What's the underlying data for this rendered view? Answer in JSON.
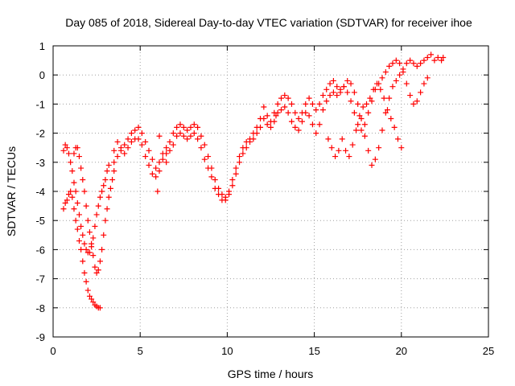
{
  "chart_data": {
    "type": "scatter",
    "title": "Day 085 of 2018, Sidereal Day-to-day VTEC variation (SDTVAR) for receiver ihoe",
    "xlabel": "GPS time / hours",
    "ylabel": "SDTVAR / TECUs",
    "xlim": [
      0,
      25
    ],
    "ylim": [
      -9,
      1
    ],
    "xticks": [
      "0",
      "5",
      "10",
      "15",
      "20",
      "25"
    ],
    "yticks": [
      "1",
      "0",
      "-1",
      "-2",
      "-3",
      "-4",
      "-5",
      "-6",
      "-7",
      "-8",
      "-9"
    ],
    "grid": true,
    "marker": "plus",
    "color": "#ff0000",
    "series": [
      {
        "values": [
          [
            0.6,
            -4.6
          ],
          [
            0.7,
            -4.4
          ],
          [
            0.8,
            -4.3
          ],
          [
            0.9,
            -4.1
          ],
          [
            1.0,
            -4.0
          ],
          [
            1.1,
            -4.2
          ],
          [
            1.2,
            -4.6
          ],
          [
            1.3,
            -5.0
          ],
          [
            1.4,
            -5.3
          ],
          [
            1.5,
            -5.7
          ],
          [
            1.6,
            -6.0
          ],
          [
            1.7,
            -6.4
          ],
          [
            1.8,
            -6.8
          ],
          [
            1.9,
            -7.1
          ],
          [
            2.0,
            -7.4
          ],
          [
            2.1,
            -7.6
          ],
          [
            2.2,
            -7.7
          ],
          [
            2.3,
            -7.8
          ],
          [
            2.4,
            -7.9
          ],
          [
            2.5,
            -7.95
          ],
          [
            2.6,
            -8.0
          ],
          [
            2.7,
            -8.0
          ]
        ]
      },
      {
        "values": [
          [
            0.6,
            -2.6
          ],
          [
            0.7,
            -2.4
          ],
          [
            0.8,
            -2.5
          ],
          [
            0.9,
            -2.7
          ],
          [
            1.0,
            -3.0
          ],
          [
            1.1,
            -3.3
          ],
          [
            1.2,
            -3.7
          ],
          [
            1.3,
            -4.0
          ],
          [
            1.4,
            -4.4
          ],
          [
            1.5,
            -4.8
          ],
          [
            1.6,
            -5.2
          ],
          [
            1.7,
            -5.5
          ],
          [
            1.8,
            -5.8
          ],
          [
            1.9,
            -6.0
          ],
          [
            2.0,
            -6.1
          ],
          [
            2.1,
            -6.1
          ],
          [
            2.2,
            -5.9
          ],
          [
            2.3,
            -5.6
          ],
          [
            2.4,
            -5.2
          ],
          [
            2.5,
            -4.8
          ],
          [
            2.6,
            -4.5
          ],
          [
            2.7,
            -4.2
          ],
          [
            2.8,
            -4.0
          ],
          [
            2.9,
            -3.8
          ],
          [
            3.0,
            -3.6
          ],
          [
            3.1,
            -3.3
          ],
          [
            3.2,
            -3.1
          ]
        ]
      },
      {
        "values": [
          [
            1.2,
            -2.7
          ],
          [
            1.3,
            -2.5
          ],
          [
            1.4,
            -2.5
          ],
          [
            1.5,
            -2.8
          ],
          [
            1.6,
            -3.2
          ],
          [
            1.7,
            -3.6
          ],
          [
            1.8,
            -4.0
          ],
          [
            1.9,
            -4.5
          ],
          [
            2.0,
            -5.0
          ],
          [
            2.1,
            -5.4
          ],
          [
            2.2,
            -5.8
          ],
          [
            2.3,
            -6.2
          ],
          [
            2.4,
            -6.6
          ],
          [
            2.5,
            -6.8
          ],
          [
            2.6,
            -6.7
          ],
          [
            2.7,
            -6.4
          ],
          [
            2.8,
            -6.0
          ],
          [
            2.9,
            -5.5
          ],
          [
            3.0,
            -5.0
          ],
          [
            3.1,
            -4.6
          ],
          [
            3.2,
            -4.2
          ],
          [
            3.3,
            -3.9
          ],
          [
            3.4,
            -3.6
          ],
          [
            3.5,
            -3.3
          ]
        ]
      },
      {
        "values": [
          [
            3.5,
            -2.6
          ],
          [
            3.7,
            -2.3
          ],
          [
            3.9,
            -2.6
          ],
          [
            4.1,
            -2.4
          ],
          [
            4.3,
            -2.2
          ],
          [
            4.5,
            -2.0
          ],
          [
            4.7,
            -1.9
          ],
          [
            4.9,
            -1.8
          ],
          [
            5.1,
            -2.0
          ],
          [
            5.3,
            -2.3
          ],
          [
            5.5,
            -2.6
          ],
          [
            5.7,
            -2.9
          ],
          [
            5.9,
            -3.2
          ],
          [
            6.1,
            -3.0
          ],
          [
            6.3,
            -2.7
          ],
          [
            6.5,
            -2.5
          ],
          [
            6.7,
            -2.3
          ],
          [
            6.9,
            -2.0
          ],
          [
            7.1,
            -1.8
          ],
          [
            7.3,
            -1.7
          ],
          [
            7.5,
            -1.8
          ],
          [
            7.7,
            -1.9
          ],
          [
            7.9,
            -1.8
          ],
          [
            8.1,
            -1.7
          ],
          [
            8.3,
            -1.8
          ],
          [
            8.5,
            -2.1
          ],
          [
            8.7,
            -2.4
          ],
          [
            8.9,
            -2.8
          ],
          [
            9.1,
            -3.2
          ],
          [
            9.3,
            -3.6
          ],
          [
            9.5,
            -3.9
          ],
          [
            9.7,
            -4.1
          ],
          [
            9.9,
            -4.2
          ],
          [
            10.1,
            -4.0
          ],
          [
            10.3,
            -3.6
          ],
          [
            10.5,
            -3.2
          ],
          [
            10.7,
            -2.8
          ],
          [
            10.9,
            -2.5
          ],
          [
            11.1,
            -2.3
          ],
          [
            11.3,
            -2.2
          ],
          [
            11.5,
            -2.0
          ],
          [
            11.7,
            -1.8
          ],
          [
            11.9,
            -1.5
          ],
          [
            12.1,
            -1.1
          ],
          [
            12.3,
            -1.4
          ],
          [
            12.5,
            -1.6
          ],
          [
            12.7,
            -1.3
          ],
          [
            12.9,
            -1.0
          ],
          [
            13.1,
            -0.8
          ],
          [
            13.3,
            -0.7
          ],
          [
            13.5,
            -0.8
          ],
          [
            13.7,
            -1.0
          ],
          [
            13.9,
            -1.3
          ],
          [
            14.1,
            -1.5
          ],
          [
            14.3,
            -1.3
          ],
          [
            14.5,
            -1.0
          ],
          [
            14.7,
            -0.8
          ],
          [
            14.9,
            -1.0
          ],
          [
            15.1,
            -1.2
          ],
          [
            15.3,
            -1.0
          ],
          [
            15.5,
            -0.7
          ],
          [
            15.7,
            -0.5
          ],
          [
            15.9,
            -0.3
          ],
          [
            16.1,
            -0.2
          ],
          [
            16.3,
            -0.4
          ],
          [
            16.5,
            -0.5
          ],
          [
            16.7,
            -0.4
          ],
          [
            16.9,
            -0.2
          ],
          [
            17.1,
            -0.3
          ],
          [
            17.3,
            -0.6
          ],
          [
            17.5,
            -1.0
          ],
          [
            17.7,
            -1.5
          ],
          [
            17.9,
            -2.1
          ],
          [
            18.1,
            -2.6
          ],
          [
            18.3,
            -3.1
          ],
          [
            18.5,
            -2.9
          ],
          [
            18.7,
            -2.5
          ],
          [
            18.9,
            -1.9
          ],
          [
            19.1,
            -1.3
          ],
          [
            19.3,
            -0.8
          ],
          [
            19.5,
            -0.4
          ],
          [
            19.7,
            -0.2
          ],
          [
            19.9,
            0.0
          ],
          [
            20.1,
            0.2
          ],
          [
            20.3,
            0.4
          ],
          [
            20.5,
            0.5
          ],
          [
            20.7,
            0.4
          ],
          [
            20.9,
            0.3
          ],
          [
            21.1,
            0.4
          ],
          [
            21.3,
            0.5
          ],
          [
            21.5,
            0.6
          ],
          [
            21.7,
            0.7
          ],
          [
            21.9,
            0.5
          ],
          [
            22.1,
            0.6
          ],
          [
            22.3,
            0.5
          ],
          [
            22.4,
            0.6
          ]
        ]
      },
      {
        "values": [
          [
            3.5,
            -3.0
          ],
          [
            3.7,
            -2.8
          ],
          [
            3.9,
            -2.5
          ],
          [
            4.1,
            -2.7
          ],
          [
            4.3,
            -2.5
          ],
          [
            4.5,
            -2.3
          ],
          [
            4.7,
            -2.2
          ],
          [
            4.9,
            -2.2
          ],
          [
            5.1,
            -2.4
          ],
          [
            5.3,
            -2.8
          ],
          [
            5.5,
            -3.1
          ],
          [
            5.7,
            -3.4
          ],
          [
            5.9,
            -3.5
          ],
          [
            6.1,
            -3.3
          ],
          [
            6.3,
            -2.9
          ],
          [
            6.5,
            -2.7
          ],
          [
            6.7,
            -2.6
          ],
          [
            6.9,
            -2.4
          ],
          [
            7.1,
            -2.1
          ],
          [
            7.3,
            -2.0
          ],
          [
            7.5,
            -2.1
          ],
          [
            7.7,
            -2.2
          ],
          [
            7.9,
            -2.1
          ],
          [
            8.1,
            -2.0
          ],
          [
            8.3,
            -2.2
          ],
          [
            8.5,
            -2.5
          ],
          [
            8.7,
            -2.9
          ],
          [
            8.9,
            -3.2
          ],
          [
            9.1,
            -3.5
          ],
          [
            9.3,
            -3.9
          ],
          [
            9.5,
            -4.1
          ],
          [
            9.7,
            -4.3
          ],
          [
            9.9,
            -4.3
          ],
          [
            10.1,
            -4.1
          ],
          [
            10.3,
            -3.8
          ],
          [
            10.5,
            -3.4
          ],
          [
            10.7,
            -3.0
          ],
          [
            10.9,
            -2.7
          ],
          [
            11.1,
            -2.5
          ],
          [
            11.3,
            -2.3
          ],
          [
            11.5,
            -2.2
          ],
          [
            11.7,
            -2.0
          ],
          [
            11.9,
            -1.8
          ],
          [
            12.1,
            -1.5
          ],
          [
            12.3,
            -1.7
          ],
          [
            12.5,
            -1.8
          ],
          [
            12.7,
            -1.6
          ],
          [
            12.9,
            -1.3
          ],
          [
            13.1,
            -1.2
          ],
          [
            13.3,
            -1.1
          ],
          [
            13.5,
            -1.3
          ],
          [
            13.7,
            -1.6
          ],
          [
            13.9,
            -1.8
          ],
          [
            14.1,
            -1.9
          ],
          [
            14.3,
            -1.6
          ],
          [
            14.5,
            -1.3
          ],
          [
            14.7,
            -1.4
          ],
          [
            14.9,
            -1.7
          ],
          [
            15.1,
            -2.0
          ],
          [
            15.3,
            -1.7
          ],
          [
            15.5,
            -1.2
          ],
          [
            15.7,
            -0.9
          ],
          [
            15.9,
            -0.7
          ],
          [
            16.1,
            -0.6
          ],
          [
            16.3,
            -0.7
          ],
          [
            16.5,
            -0.6
          ],
          [
            16.7,
            -0.4
          ],
          [
            16.9,
            -0.6
          ],
          [
            17.1,
            -0.9
          ],
          [
            17.3,
            -1.3
          ],
          [
            17.5,
            -1.7
          ],
          [
            17.7,
            -1.9
          ],
          [
            17.9,
            -1.7
          ],
          [
            18.1,
            -1.3
          ],
          [
            18.3,
            -0.9
          ],
          [
            18.5,
            -0.5
          ],
          [
            18.7,
            -0.3
          ],
          [
            18.9,
            -0.1
          ],
          [
            19.1,
            0.1
          ],
          [
            19.3,
            0.3
          ],
          [
            19.5,
            0.4
          ],
          [
            19.7,
            0.5
          ],
          [
            19.9,
            0.4
          ],
          [
            20.1,
            0.1
          ],
          [
            20.3,
            -0.3
          ],
          [
            20.5,
            -0.7
          ],
          [
            20.7,
            -1.0
          ],
          [
            20.9,
            -0.9
          ],
          [
            21.1,
            -0.6
          ],
          [
            21.3,
            -0.3
          ],
          [
            21.5,
            -0.1
          ]
        ]
      },
      {
        "values": [
          [
            15.8,
            -2.2
          ],
          [
            16.0,
            -2.5
          ],
          [
            16.2,
            -2.8
          ],
          [
            16.4,
            -2.6
          ],
          [
            16.6,
            -2.2
          ],
          [
            16.8,
            -2.6
          ],
          [
            17.0,
            -2.8
          ],
          [
            17.2,
            -2.4
          ],
          [
            17.4,
            -1.9
          ],
          [
            17.6,
            -1.4
          ],
          [
            17.8,
            -1.1
          ],
          [
            18.0,
            -1.0
          ],
          [
            18.2,
            -0.8
          ],
          [
            18.4,
            -0.5
          ],
          [
            18.6,
            -0.3
          ],
          [
            18.8,
            -0.5
          ],
          [
            19.0,
            -0.8
          ],
          [
            19.2,
            -1.2
          ],
          [
            19.4,
            -1.5
          ],
          [
            19.6,
            -1.8
          ],
          [
            19.8,
            -2.2
          ],
          [
            20.0,
            -2.5
          ]
        ]
      },
      {
        "values": [
          [
            6.0,
            -4.0
          ],
          [
            6.1,
            -2.1
          ],
          [
            6.5,
            -3.0
          ],
          [
            12.8,
            -1.4
          ]
        ]
      }
    ]
  }
}
